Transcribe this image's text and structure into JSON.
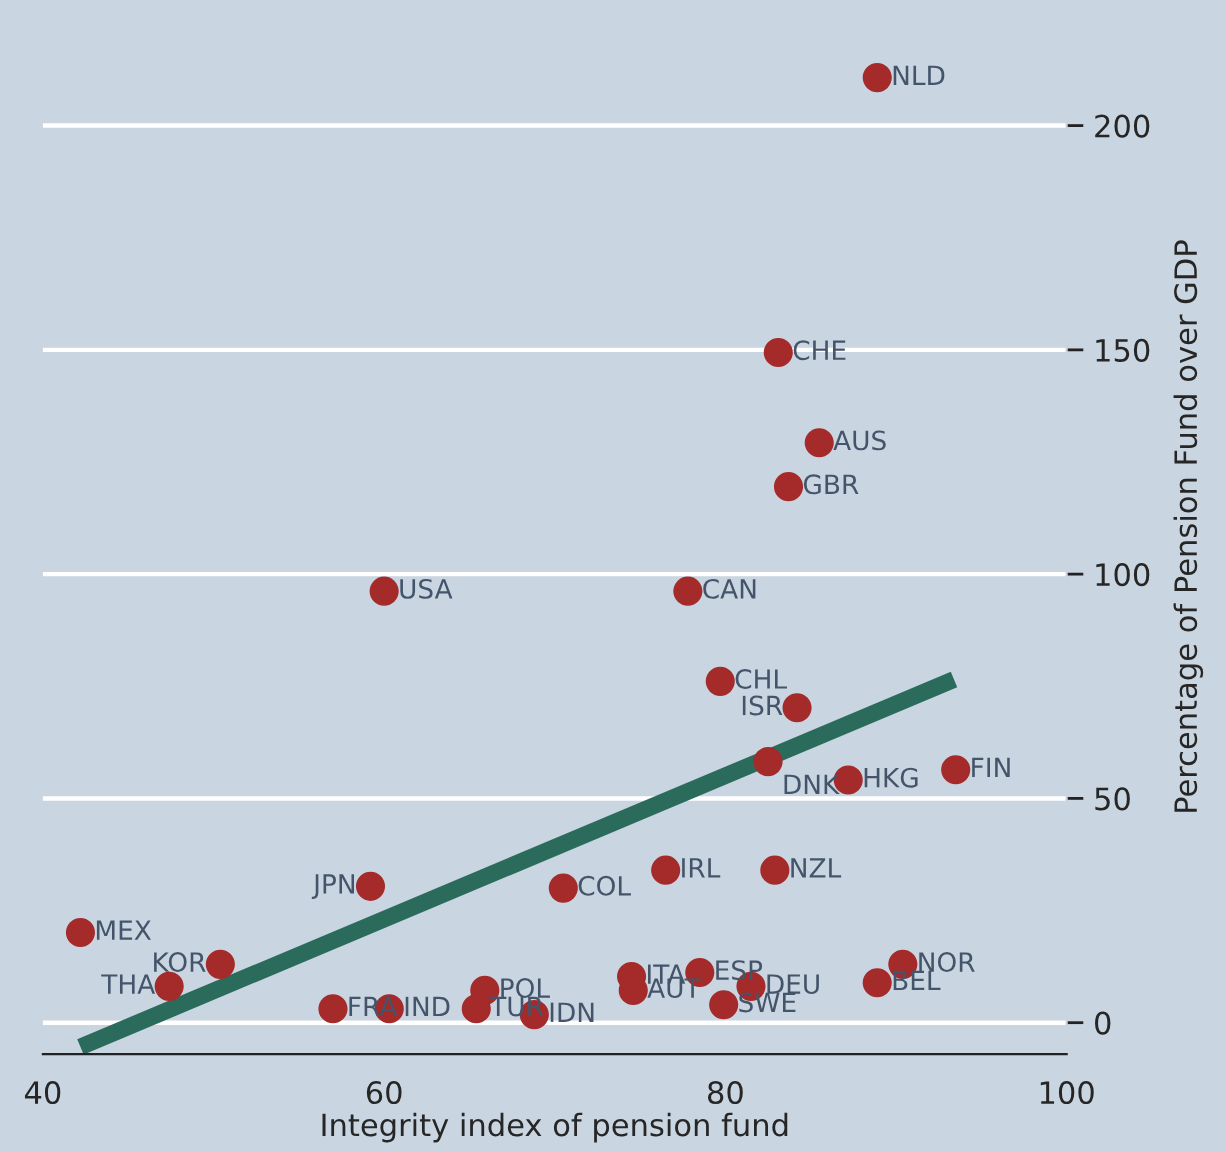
{
  "chart_data": {
    "type": "scatter",
    "xlabel": "Integrity index of pension fund",
    "ylabel": "Percentage of Pension Fund over GDP",
    "xlim": [
      40,
      100
    ],
    "ylim": [
      -7,
      228
    ],
    "xticks": [
      40,
      60,
      80,
      100
    ],
    "yticks": [
      0,
      50,
      100,
      150,
      200
    ],
    "grid": "y",
    "series": [
      {
        "color": "#a52a2a",
        "marker": "circle",
        "x": [
          88.9,
          83.1,
          85.5,
          83.7,
          60.0,
          77.8,
          79.7,
          84.2,
          82.5,
          87.2,
          93.5,
          59.2,
          70.5,
          76.5,
          82.9,
          42.2,
          50.4,
          47.4,
          57.0,
          60.3,
          65.9,
          65.4,
          68.8,
          74.5,
          74.6,
          78.5,
          81.5,
          79.9,
          90.4,
          88.9
        ],
        "values": [
          210.7,
          149.4,
          129.3,
          119.5,
          96.2,
          96.2,
          76.1,
          70.2,
          58.2,
          54.1,
          56.4,
          30.4,
          30.0,
          34.0,
          34.0,
          20.1,
          13.0,
          8.1,
          3.1,
          3.1,
          7.2,
          3.1,
          1.8,
          10.3,
          7.2,
          11.2,
          8.1,
          4.0,
          13.0,
          8.9
        ]
      },
      {
        "type": "line",
        "color": "#2b6b5c",
        "x": [
          42.2,
          93.4
        ],
        "values": [
          -5.4,
          76.5
        ]
      }
    ],
    "annotations": [
      {
        "text": "NLD",
        "x": 88.9,
        "y": 210.7
      },
      {
        "text": "CHE",
        "x": 83.1,
        "y": 149.4
      },
      {
        "text": "AUS",
        "x": 85.5,
        "y": 129.3
      },
      {
        "text": "GBR",
        "x": 83.7,
        "y": 119.5
      },
      {
        "text": "USA",
        "x": 60.0,
        "y": 96.2
      },
      {
        "text": "CAN",
        "x": 77.8,
        "y": 96.2
      },
      {
        "text": "CHL",
        "x": 79.7,
        "y": 76.1
      },
      {
        "text": "ISR",
        "x": 84.2,
        "y": 70.2
      },
      {
        "text": "DNK",
        "x": 82.5,
        "y": 58.2
      },
      {
        "text": "HKG",
        "x": 87.2,
        "y": 54.1
      },
      {
        "text": "FIN",
        "x": 93.5,
        "y": 56.4
      },
      {
        "text": "JPN",
        "x": 59.2,
        "y": 30.4
      },
      {
        "text": "COL",
        "x": 70.5,
        "y": 30.0
      },
      {
        "text": "IRL",
        "x": 76.5,
        "y": 34.0
      },
      {
        "text": "NZL",
        "x": 82.9,
        "y": 34.0
      },
      {
        "text": "MEX",
        "x": 42.2,
        "y": 20.1
      },
      {
        "text": "KOR",
        "x": 50.4,
        "y": 13.0
      },
      {
        "text": "THA",
        "x": 47.4,
        "y": 8.1
      },
      {
        "text": "FRA",
        "x": 57.0,
        "y": 3.1
      },
      {
        "text": "IND",
        "x": 60.3,
        "y": 3.1
      },
      {
        "text": "POL",
        "x": 65.9,
        "y": 7.2
      },
      {
        "text": "TUR",
        "x": 65.4,
        "y": 3.1
      },
      {
        "text": "IDN",
        "x": 68.8,
        "y": 1.8
      },
      {
        "text": "ITA",
        "x": 74.5,
        "y": 10.3
      },
      {
        "text": "AUT",
        "x": 74.6,
        "y": 7.2
      },
      {
        "text": "ESP",
        "x": 78.5,
        "y": 11.2
      },
      {
        "text": "DEU",
        "x": 81.5,
        "y": 8.1
      },
      {
        "text": "SWE",
        "x": 79.9,
        "y": 4.0
      },
      {
        "text": "NOR",
        "x": 90.4,
        "y": 13.0
      },
      {
        "text": "BEL",
        "x": 88.9,
        "y": 8.9
      }
    ]
  }
}
